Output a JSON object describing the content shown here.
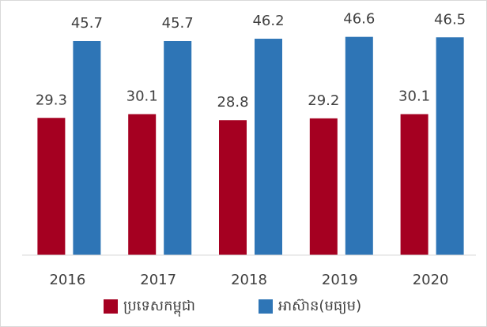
{
  "chart_data": {
    "type": "bar",
    "categories": [
      "2016",
      "2017",
      "2018",
      "2019",
      "2020"
    ],
    "series": [
      {
        "name": "ប្រទេសកម្ពុជា",
        "color": "#a50021",
        "values": [
          29.3,
          30.1,
          28.8,
          29.2,
          30.1
        ]
      },
      {
        "name": "អាស៊ាន(មធ្យម)",
        "color": "#2e75b6",
        "values": [
          45.7,
          45.7,
          46.2,
          46.6,
          46.5
        ]
      }
    ],
    "ylim": [
      0,
      50
    ],
    "legend": "bottom"
  }
}
